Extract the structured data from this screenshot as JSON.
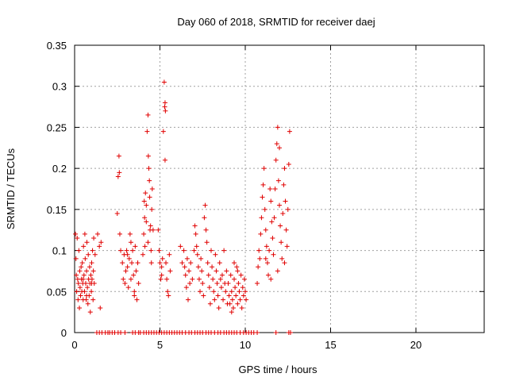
{
  "chart_data": {
    "type": "scatter",
    "title": "Day 060 of 2018, SRMTID for receiver daej",
    "xlabel": "GPS time / hours",
    "ylabel": "SRMTID / TECUs",
    "xlim": [
      0,
      24
    ],
    "ylim": [
      0,
      0.35
    ],
    "xticks": [
      0,
      5,
      10,
      15,
      20
    ],
    "yticks": [
      0,
      0.05,
      0.1,
      0.15,
      0.2,
      0.25,
      0.3,
      0.35
    ],
    "ytick_labels": [
      "0",
      "0.05",
      "0.1",
      "0.15",
      "0.2",
      "0.25",
      "0.3",
      "0.35"
    ],
    "grid": true,
    "marker": "plus",
    "color": "#e00000",
    "points": [
      [
        0.05,
        0.12
      ],
      [
        0.08,
        0.09
      ],
      [
        0.1,
        0.07
      ],
      [
        0.12,
        0.05
      ],
      [
        0.15,
        0.115
      ],
      [
        0.18,
        0.065
      ],
      [
        0.2,
        0.04
      ],
      [
        0.22,
        0.06
      ],
      [
        0.25,
        0.1
      ],
      [
        0.28,
        0.03
      ],
      [
        0.3,
        0.075
      ],
      [
        0.32,
        0.055
      ],
      [
        0.35,
        0.045
      ],
      [
        0.38,
        0.08
      ],
      [
        0.4,
        0.065
      ],
      [
        0.42,
        0.05
      ],
      [
        0.45,
        0.085
      ],
      [
        0.48,
        0.06
      ],
      [
        0.5,
        0.04
      ],
      [
        0.52,
        0.105
      ],
      [
        0.55,
        0.07
      ],
      [
        0.58,
        0.05
      ],
      [
        0.6,
        0.12
      ],
      [
        0.62,
        0.09
      ],
      [
        0.65,
        0.06
      ],
      [
        0.68,
        0.04
      ],
      [
        0.7,
        0.075
      ],
      [
        0.72,
        0.11
      ],
      [
        0.75,
        0.055
      ],
      [
        0.78,
        0.035
      ],
      [
        0.8,
        0.095
      ],
      [
        0.82,
        0.065
      ],
      [
        0.85,
        0.045
      ],
      [
        0.88,
        0.08
      ],
      [
        0.9,
        0.06
      ],
      [
        0.92,
        0.025
      ],
      [
        0.95,
        0.07
      ],
      [
        0.98,
        0.05
      ],
      [
        1.0,
        0.085
      ],
      [
        1.02,
        0.065
      ],
      [
        1.05,
        0.1
      ],
      [
        1.08,
        0.04
      ],
      [
        1.1,
        0.075
      ],
      [
        1.12,
        0.115
      ],
      [
        1.15,
        0.06
      ],
      [
        1.2,
        0.095
      ],
      [
        1.35,
        0.12
      ],
      [
        1.45,
        0.105
      ],
      [
        1.5,
        0.03
      ],
      [
        1.55,
        0.11
      ],
      [
        1.0,
        0.06
      ],
      [
        0.7,
        0.045
      ],
      [
        0.5,
        0.065
      ],
      [
        2.5,
        0.145
      ],
      [
        2.55,
        0.19
      ],
      [
        2.6,
        0.215
      ],
      [
        2.62,
        0.195
      ],
      [
        2.65,
        0.12
      ],
      [
        2.7,
        0.1
      ],
      [
        2.8,
        0.085
      ],
      [
        2.85,
        0.065
      ],
      [
        2.9,
        0.095
      ],
      [
        2.95,
        0.06
      ],
      [
        3.0,
        0.075
      ],
      [
        3.05,
        0.1
      ],
      [
        3.1,
        0.08
      ],
      [
        3.15,
        0.055
      ],
      [
        3.2,
        0.09
      ],
      [
        3.25,
        0.12
      ],
      [
        3.3,
        0.065
      ],
      [
        3.35,
        0.085
      ],
      [
        3.4,
        0.1
      ],
      [
        3.45,
        0.07
      ],
      [
        3.5,
        0.05
      ],
      [
        3.55,
        0.105
      ],
      [
        3.6,
        0.075
      ],
      [
        3.65,
        0.04
      ],
      [
        3.7,
        0.085
      ],
      [
        3.75,
        0.06
      ],
      [
        3.5,
        0.045
      ],
      [
        3.3,
        0.11
      ],
      [
        3.1,
        0.095
      ],
      [
        4.0,
        0.095
      ],
      [
        4.05,
        0.12
      ],
      [
        4.1,
        0.14
      ],
      [
        4.15,
        0.17
      ],
      [
        4.2,
        0.155
      ],
      [
        4.25,
        0.245
      ],
      [
        4.3,
        0.265
      ],
      [
        4.32,
        0.215
      ],
      [
        4.35,
        0.2
      ],
      [
        4.38,
        0.185
      ],
      [
        4.4,
        0.165
      ],
      [
        4.42,
        0.125
      ],
      [
        4.45,
        0.13
      ],
      [
        4.48,
        0.1
      ],
      [
        4.5,
        0.085
      ],
      [
        4.52,
        0.15
      ],
      [
        4.55,
        0.175
      ],
      [
        4.6,
        0.125
      ],
      [
        4.3,
        0.11
      ],
      [
        4.2,
        0.135
      ],
      [
        4.12,
        0.105
      ],
      [
        4.08,
        0.16
      ],
      [
        4.9,
        0.125
      ],
      [
        4.95,
        0.1
      ],
      [
        5.0,
        0.085
      ],
      [
        5.05,
        0.065
      ],
      [
        5.1,
        0.08
      ],
      [
        5.15,
        0.09
      ],
      [
        5.2,
        0.245
      ],
      [
        5.25,
        0.305
      ],
      [
        5.3,
        0.28
      ],
      [
        5.32,
        0.27
      ],
      [
        5.35,
        0.085
      ],
      [
        5.4,
        0.065
      ],
      [
        5.45,
        0.05
      ],
      [
        5.5,
        0.045
      ],
      [
        5.55,
        0.095
      ],
      [
        5.6,
        0.075
      ],
      [
        5.3,
        0.21
      ],
      [
        5.28,
        0.275
      ],
      [
        5.1,
        0.07
      ],
      [
        6.2,
        0.105
      ],
      [
        6.3,
        0.085
      ],
      [
        6.4,
        0.1
      ],
      [
        6.45,
        0.08
      ],
      [
        6.5,
        0.07
      ],
      [
        6.55,
        0.055
      ],
      [
        6.6,
        0.09
      ],
      [
        6.65,
        0.04
      ],
      [
        6.7,
        0.075
      ],
      [
        6.75,
        0.06
      ],
      [
        6.8,
        0.085
      ],
      [
        6.9,
        0.065
      ],
      [
        7.0,
        0.1
      ],
      [
        7.05,
        0.13
      ],
      [
        7.1,
        0.12
      ],
      [
        7.15,
        0.105
      ],
      [
        7.2,
        0.095
      ],
      [
        7.25,
        0.08
      ],
      [
        7.3,
        0.065
      ],
      [
        7.35,
        0.05
      ],
      [
        7.4,
        0.09
      ],
      [
        7.45,
        0.075
      ],
      [
        7.5,
        0.06
      ],
      [
        7.55,
        0.045
      ],
      [
        7.6,
        0.14
      ],
      [
        7.65,
        0.155
      ],
      [
        7.7,
        0.125
      ],
      [
        7.75,
        0.11
      ],
      [
        7.8,
        0.085
      ],
      [
        7.85,
        0.07
      ],
      [
        7.9,
        0.055
      ],
      [
        7.95,
        0.035
      ],
      [
        8.0,
        0.1
      ],
      [
        8.05,
        0.08
      ],
      [
        8.1,
        0.065
      ],
      [
        8.15,
        0.05
      ],
      [
        8.2,
        0.04
      ],
      [
        8.25,
        0.095
      ],
      [
        8.3,
        0.075
      ],
      [
        8.35,
        0.06
      ],
      [
        8.4,
        0.045
      ],
      [
        8.45,
        0.03
      ],
      [
        8.5,
        0.085
      ],
      [
        8.55,
        0.065
      ],
      [
        8.6,
        0.055
      ],
      [
        8.65,
        0.07
      ],
      [
        8.7,
        0.04
      ],
      [
        8.75,
        0.1
      ],
      [
        8.8,
        0.06
      ],
      [
        8.85,
        0.05
      ],
      [
        8.9,
        0.075
      ],
      [
        8.95,
        0.035
      ],
      [
        9.0,
        0.06
      ],
      [
        9.05,
        0.045
      ],
      [
        9.1,
        0.035
      ],
      [
        9.15,
        0.07
      ],
      [
        9.2,
        0.05
      ],
      [
        9.25,
        0.04
      ],
      [
        9.3,
        0.03
      ],
      [
        9.35,
        0.065
      ],
      [
        9.4,
        0.055
      ],
      [
        9.45,
        0.045
      ],
      [
        9.5,
        0.08
      ],
      [
        9.55,
        0.035
      ],
      [
        9.6,
        0.06
      ],
      [
        9.65,
        0.05
      ],
      [
        9.7,
        0.04
      ],
      [
        9.75,
        0.07
      ],
      [
        9.8,
        0.03
      ],
      [
        9.85,
        0.055
      ],
      [
        9.9,
        0.045
      ],
      [
        9.95,
        0.065
      ],
      [
        10.0,
        0.05
      ],
      [
        10.05,
        0.04
      ],
      [
        9.35,
        0.085
      ],
      [
        9.55,
        0.075
      ],
      [
        9.2,
        0.025
      ],
      [
        10.7,
        0.06
      ],
      [
        10.75,
        0.08
      ],
      [
        10.8,
        0.1
      ],
      [
        10.85,
        0.09
      ],
      [
        10.9,
        0.12
      ],
      [
        10.95,
        0.14
      ],
      [
        11.0,
        0.165
      ],
      [
        11.05,
        0.18
      ],
      [
        11.1,
        0.2
      ],
      [
        11.15,
        0.15
      ],
      [
        11.2,
        0.125
      ],
      [
        11.25,
        0.105
      ],
      [
        11.3,
        0.085
      ],
      [
        11.35,
        0.07
      ],
      [
        11.4,
        0.1
      ],
      [
        11.45,
        0.175
      ],
      [
        11.5,
        0.16
      ],
      [
        11.55,
        0.135
      ],
      [
        11.6,
        0.115
      ],
      [
        11.65,
        0.095
      ],
      [
        11.7,
        0.14
      ],
      [
        11.75,
        0.175
      ],
      [
        11.8,
        0.21
      ],
      [
        11.85,
        0.23
      ],
      [
        11.9,
        0.25
      ],
      [
        11.95,
        0.185
      ],
      [
        12.0,
        0.155
      ],
      [
        12.05,
        0.13
      ],
      [
        12.1,
        0.11
      ],
      [
        12.15,
        0.09
      ],
      [
        12.2,
        0.145
      ],
      [
        12.25,
        0.18
      ],
      [
        12.3,
        0.2
      ],
      [
        12.35,
        0.16
      ],
      [
        12.4,
        0.125
      ],
      [
        12.45,
        0.105
      ],
      [
        12.5,
        0.15
      ],
      [
        12.55,
        0.205
      ],
      [
        12.6,
        0.245
      ],
      [
        11.5,
        0.065
      ],
      [
        11.2,
        0.09
      ],
      [
        11.9,
        0.075
      ],
      [
        12.3,
        0.085
      ],
      [
        12.0,
        0.225
      ]
    ],
    "zero_points": [
      1.3,
      1.45,
      1.6,
      1.8,
      1.95,
      2.05,
      2.2,
      2.35,
      2.55,
      2.7,
      2.95,
      3.4,
      3.55,
      3.75,
      3.85,
      4.05,
      4.2,
      4.35,
      4.5,
      4.65,
      4.8,
      4.95,
      5.1,
      5.25,
      5.4,
      5.55,
      5.7,
      5.85,
      6.0,
      6.15,
      6.3,
      6.5,
      6.7,
      6.85,
      7.05,
      7.2,
      7.35,
      7.5,
      7.7,
      7.85,
      8.0,
      8.2,
      8.4,
      8.55,
      8.75,
      8.9,
      9.05,
      9.2,
      9.35,
      9.5,
      9.7,
      9.9,
      10.05,
      10.2,
      10.35,
      10.5,
      10.7,
      11.8,
      12.55,
      12.65
    ]
  }
}
